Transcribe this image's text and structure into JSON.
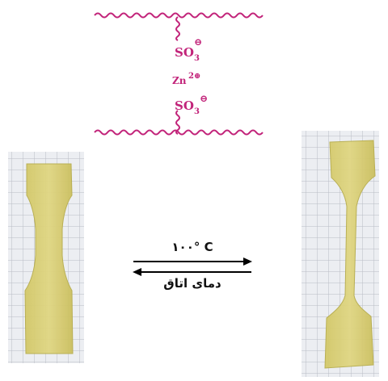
{
  "polymer_structure": {
    "group_top": "SO",
    "group_top_subscript": "3",
    "group_top_charge": "⊖",
    "ion": "Zn",
    "ion_charge": "2⊕",
    "group_bottom": "SO",
    "group_bottom_subscript": "3",
    "group_bottom_charge": "⊖",
    "chain_color": "#c2247a"
  },
  "reaction": {
    "forward_condition": "۱۰۰° C",
    "reverse_condition": "دمای اتاق"
  },
  "samples": {
    "left_specimen": "dogbone-specimen-original",
    "right_specimen": "dogbone-specimen-stretched",
    "specimen_color": "#d9cf76",
    "grid_color": "#b9bcc4"
  }
}
